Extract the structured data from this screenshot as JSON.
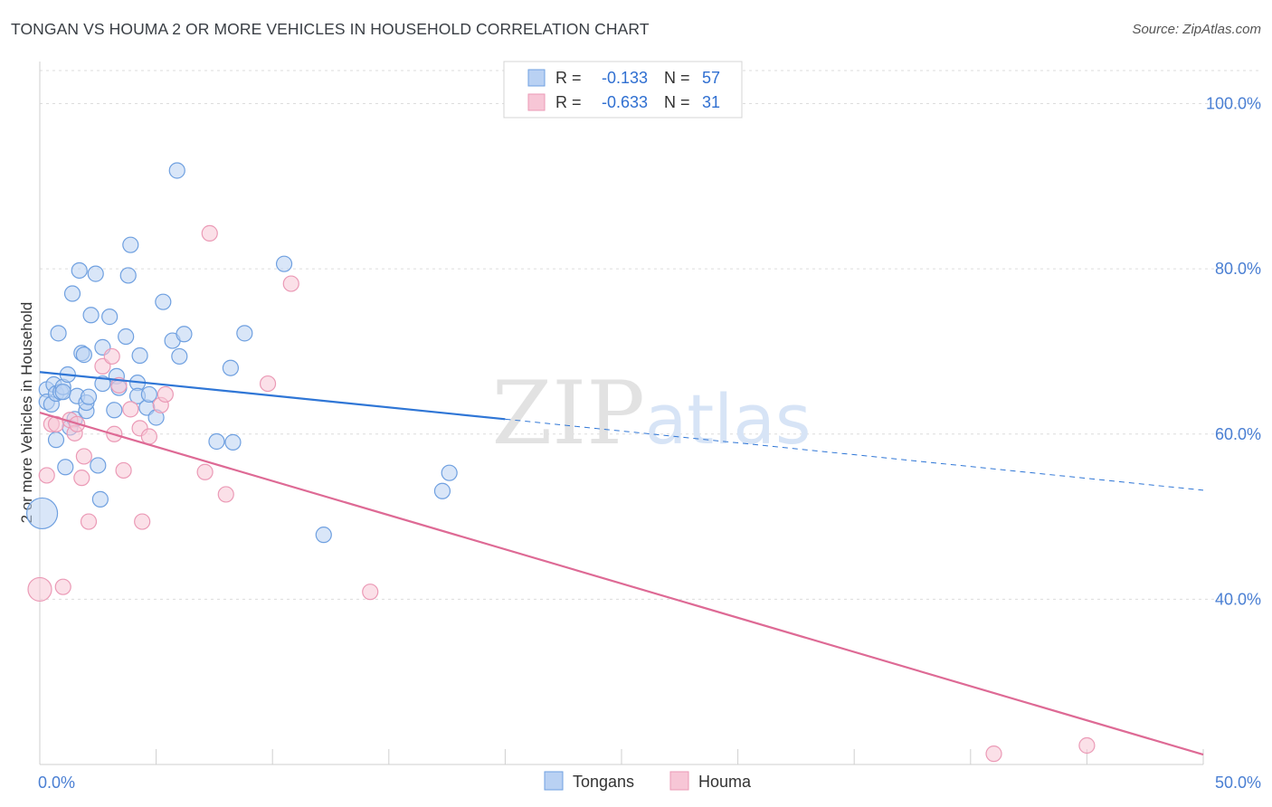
{
  "chart_data": {
    "type": "scatter",
    "title": "TONGAN VS HOUMA 2 OR MORE VEHICLES IN HOUSEHOLD CORRELATION CHART",
    "source": "Source: ZipAtlas.com",
    "ylabel": "2 or more Vehicles in Household",
    "xlabel": "",
    "xlim": [
      0,
      50
    ],
    "ylim": [
      20,
      104
    ],
    "x_tick_labels": [
      {
        "value": 0,
        "label": "0.0%"
      },
      {
        "value": 50,
        "label": "50.0%"
      }
    ],
    "y_tick_labels": [
      {
        "value": 100,
        "label": "100.0%"
      },
      {
        "value": 80,
        "label": "80.0%"
      },
      {
        "value": 60,
        "label": "60.0%"
      },
      {
        "value": 40,
        "label": "40.0%"
      }
    ],
    "watermark": {
      "part1": "ZIP",
      "part2": "atlas"
    },
    "legend": [
      {
        "series": "Tongans",
        "r_label": "R = ",
        "r_value": "-0.133",
        "n_label": "N = ",
        "n_value": "57"
      },
      {
        "series": "Houma",
        "r_label": "R = ",
        "r_value": "-0.633",
        "n_label": "N = ",
        "n_value": "31"
      }
    ],
    "series": [
      {
        "name": "Tongans",
        "color": "#6fa0e0",
        "fill": "#b9d1f3",
        "line_color": "#2f76d6",
        "trend": {
          "x0": 0,
          "y0": 67.5,
          "x1": 20,
          "y1": 61.8,
          "dash_to_x": 50,
          "dash_to_y": 53.2
        },
        "points": [
          [
            0.3,
            65.4
          ],
          [
            0.3,
            63.9
          ],
          [
            0.5,
            63.6
          ],
          [
            0.6,
            66.0
          ],
          [
            0.7,
            59.3
          ],
          [
            0.7,
            64.9
          ],
          [
            0.8,
            72.2
          ],
          [
            0.9,
            65.1
          ],
          [
            1.0,
            65.7
          ],
          [
            1.0,
            65.1
          ],
          [
            1.1,
            56.0
          ],
          [
            1.2,
            67.2
          ],
          [
            1.3,
            60.8
          ],
          [
            1.4,
            77.0
          ],
          [
            1.5,
            61.8
          ],
          [
            1.6,
            64.6
          ],
          [
            1.7,
            79.8
          ],
          [
            1.8,
            69.8
          ],
          [
            1.9,
            69.6
          ],
          [
            2.0,
            62.8
          ],
          [
            2.0,
            63.8
          ],
          [
            2.1,
            64.5
          ],
          [
            2.2,
            74.4
          ],
          [
            2.4,
            79.4
          ],
          [
            2.5,
            56.2
          ],
          [
            2.6,
            52.1
          ],
          [
            2.7,
            66.1
          ],
          [
            2.7,
            70.5
          ],
          [
            3.0,
            74.2
          ],
          [
            3.2,
            62.9
          ],
          [
            3.3,
            67.0
          ],
          [
            3.4,
            65.6
          ],
          [
            3.7,
            71.8
          ],
          [
            3.8,
            79.2
          ],
          [
            3.9,
            82.9
          ],
          [
            4.2,
            66.2
          ],
          [
            4.2,
            64.6
          ],
          [
            4.3,
            69.5
          ],
          [
            4.6,
            63.2
          ],
          [
            4.7,
            64.8
          ],
          [
            5.0,
            62.0
          ],
          [
            5.3,
            76.0
          ],
          [
            5.7,
            71.3
          ],
          [
            5.9,
            91.9
          ],
          [
            6.0,
            69.4
          ],
          [
            6.2,
            72.1
          ],
          [
            7.6,
            59.1
          ],
          [
            8.2,
            68.0
          ],
          [
            8.3,
            59.0
          ],
          [
            8.8,
            72.2
          ],
          [
            10.5,
            80.6
          ],
          [
            12.2,
            47.8
          ],
          [
            17.3,
            53.1
          ],
          [
            17.6,
            55.3
          ],
          [
            0.1,
            50.4
          ]
        ],
        "point_radius": 8.5,
        "big_point": {
          "x": 0.1,
          "y": 50.4,
          "radius": 17
        }
      },
      {
        "name": "Houma",
        "color": "#eb9ab6",
        "fill": "#f7c6d6",
        "line_color": "#de6a95",
        "trend": {
          "x0": 0,
          "y0": 62.6,
          "x1": 50,
          "y1": 21.2
        },
        "points": [
          [
            0.3,
            55.0
          ],
          [
            0.5,
            61.2
          ],
          [
            0.7,
            61.2
          ],
          [
            1.0,
            41.5
          ],
          [
            1.3,
            61.7
          ],
          [
            1.5,
            60.1
          ],
          [
            1.6,
            61.2
          ],
          [
            1.8,
            54.7
          ],
          [
            1.9,
            57.3
          ],
          [
            2.1,
            49.4
          ],
          [
            2.7,
            68.2
          ],
          [
            3.1,
            69.4
          ],
          [
            3.2,
            60.0
          ],
          [
            3.4,
            65.9
          ],
          [
            3.6,
            55.6
          ],
          [
            3.9,
            63.0
          ],
          [
            4.3,
            60.7
          ],
          [
            4.4,
            49.4
          ],
          [
            4.7,
            59.7
          ],
          [
            5.2,
            63.5
          ],
          [
            5.4,
            64.8
          ],
          [
            7.1,
            55.4
          ],
          [
            7.3,
            84.3
          ],
          [
            8.0,
            52.7
          ],
          [
            9.8,
            66.1
          ],
          [
            10.8,
            78.2
          ],
          [
            14.2,
            40.9
          ],
          [
            41.0,
            21.3
          ],
          [
            45.0,
            22.3
          ],
          [
            0.0,
            41.2
          ]
        ],
        "point_radius": 8.5,
        "big_point": {
          "x": 0.0,
          "y": 41.2,
          "radius": 13
        }
      }
    ]
  }
}
